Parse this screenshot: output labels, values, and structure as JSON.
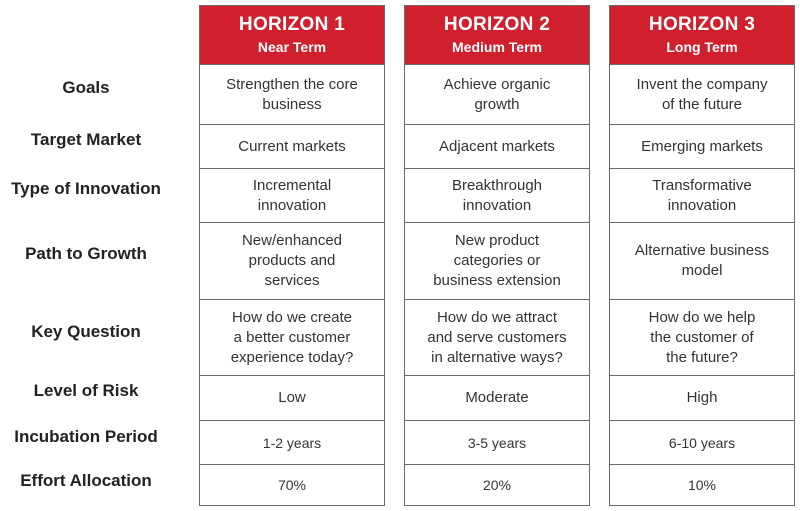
{
  "rows": [
    "Goals",
    "Target Market",
    "Type of Innovation",
    "Path to Growth",
    "Key Question",
    "Level of Risk",
    "Incubation Period",
    "Effort Allocation"
  ],
  "columns": [
    {
      "title": "HORIZON 1",
      "subtitle": "Near Term",
      "cells": [
        "Strengthen the core\nbusiness",
        "Current markets",
        "Incremental\ninnovation",
        "New/enhanced\nproducts and\nservices",
        "How do we create\na better customer\nexperience today?",
        "Low",
        "1-2 years",
        "70%"
      ]
    },
    {
      "title": "HORIZON 2",
      "subtitle": "Medium Term",
      "cells": [
        "Achieve organic\ngrowth",
        "Adjacent markets",
        "Breakthrough\ninnovation",
        "New product\ncategories or\nbusiness extension",
        "How do we attract\nand serve customers\nin alternative ways?",
        "Moderate",
        "3-5 years",
        "20%"
      ]
    },
    {
      "title": "HORIZON 3",
      "subtitle": "Long Term",
      "cells": [
        "Invent the company\nof the future",
        "Emerging markets",
        "Transformative\ninnovation",
        "Alternative business\nmodel",
        "How do we help\nthe customer of\nthe future?",
        "High",
        "6-10 years",
        "10%"
      ]
    }
  ],
  "colors": {
    "header_red": "#d0202e",
    "border": "#6b6b6b",
    "text": "#333333"
  }
}
